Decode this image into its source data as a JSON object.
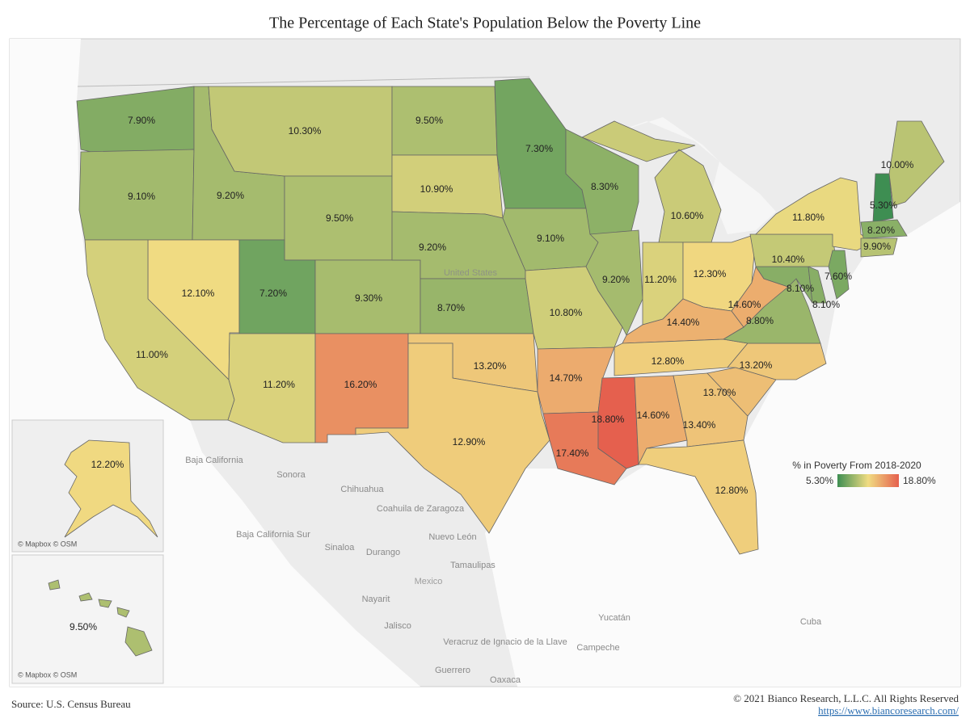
{
  "title": "The Percentage of Each State's Population Below the Poverty Line",
  "map": {
    "type": "choropleth",
    "values": [
      7.9,
      9.1,
      9.2,
      10.3,
      9.5,
      12.1,
      11.0,
      7.2,
      11.2,
      9.3,
      16.2,
      9.5,
      10.9,
      9.2,
      8.7,
      13.2,
      12.9,
      7.3,
      9.1,
      10.8,
      14.7,
      17.4,
      8.3,
      9.2,
      10.6,
      11.2,
      12.3,
      14.4,
      12.8,
      18.8,
      14.6,
      13.4,
      12.8,
      13.7,
      13.2,
      8.8,
      14.6,
      8.1,
      8.1,
      10.4,
      7.6,
      11.8,
      5.3,
      10.0,
      8.2,
      9.9,
      12.2,
      9.5
    ],
    "value_labels": [
      "7.90%",
      "9.10%",
      "9.20%",
      "10.30%",
      "9.50%",
      "12.10%",
      "11.00%",
      "7.20%",
      "11.20%",
      "9.30%",
      "16.20%",
      "9.50%",
      "10.90%",
      "9.20%",
      "8.70%",
      "13.20%",
      "12.90%",
      "7.30%",
      "9.10%",
      "10.80%",
      "14.70%",
      "17.40%",
      "8.30%",
      "9.20%",
      "10.60%",
      "11.20%",
      "12.30%",
      "14.40%",
      "12.80%",
      "18.80%",
      "14.60%",
      "13.40%",
      "12.80%",
      "13.70%",
      "13.20%",
      "8.80%",
      "14.60%",
      "8.10%",
      "8.10%",
      "10.40%",
      "7.60%",
      "11.80%",
      "5.30%",
      "10.00%",
      "8.20%",
      "9.90%",
      "12.20%",
      "9.50%"
    ],
    "legend": {
      "title": "% in Poverty From 2018-2020",
      "min": 5.3,
      "min_label": "5.30%",
      "max": 18.8,
      "max_label": "18.80%",
      "colors": [
        "#3e8e52",
        "#f0dc82",
        "#e5604e"
      ]
    },
    "place_labels": [
      "Baja California",
      "Sonora",
      "Chihuahua",
      "Coahuila de Zaragoza",
      "Baja California Sur",
      "Sinaloa",
      "Durango",
      "Nuevo León",
      "Tamaulipas",
      "Mexico",
      "Nayarit",
      "Jalisco",
      "Veracruz de Ignacio de la Llave",
      "Yucatán",
      "Campeche",
      "Guerrero",
      "Oaxaca",
      "Cuba",
      "United States"
    ],
    "attribution": "© Mapbox © OSM"
  },
  "footer": {
    "source": "Source: U.S. Census Bureau",
    "copyright": "© 2021 Bianco Research, L.L.C. All Rights Reserved",
    "url": "https://www.biancoresearch.com/"
  }
}
